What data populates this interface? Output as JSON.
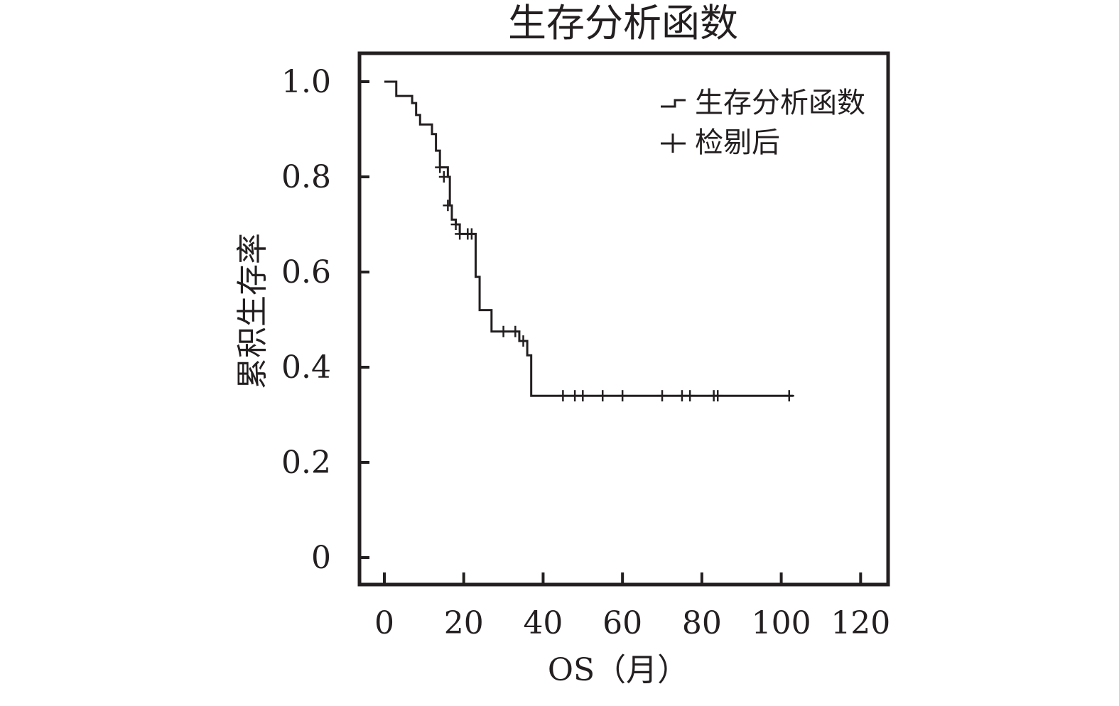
{
  "chart_data": {
    "type": "line",
    "title": "生存分析函数",
    "xlabel": "OS（月）",
    "ylabel": "累积生存率",
    "xlim": [
      -7,
      126
    ],
    "ylim": [
      -0.06,
      1.06
    ],
    "xticks": [
      0,
      20,
      40,
      60,
      80,
      100,
      120
    ],
    "yticks": [
      0,
      0.2,
      0.4,
      0.6,
      0.8,
      1.0
    ],
    "xtick_labels": [
      "0",
      "20",
      "40",
      "60",
      "80",
      "100",
      "120"
    ],
    "ytick_labels": [
      "0",
      "0.2",
      "0.4",
      "0.6",
      "0.8",
      "1.0"
    ],
    "grid": false,
    "legend_position": "top-right",
    "legend": [
      {
        "symbol": "step",
        "label": "生存分析函数"
      },
      {
        "symbol": "plus",
        "label": "检剔后"
      }
    ],
    "series": [
      {
        "kind": "survival-step",
        "steps": [
          {
            "x": 0,
            "y": 1.0
          },
          {
            "x": 3,
            "y": 0.97
          },
          {
            "x": 7,
            "y": 0.955
          },
          {
            "x": 8,
            "y": 0.93
          },
          {
            "x": 9,
            "y": 0.91
          },
          {
            "x": 12,
            "y": 0.89
          },
          {
            "x": 13,
            "y": 0.855
          },
          {
            "x": 14,
            "y": 0.82
          },
          {
            "x": 16,
            "y": 0.8
          },
          {
            "x": 16.5,
            "y": 0.74
          },
          {
            "x": 17,
            "y": 0.71
          },
          {
            "x": 18,
            "y": 0.7
          },
          {
            "x": 19,
            "y": 0.68
          },
          {
            "x": 23,
            "y": 0.59
          },
          {
            "x": 24,
            "y": 0.52
          },
          {
            "x": 27,
            "y": 0.475
          },
          {
            "x": 34,
            "y": 0.455
          },
          {
            "x": 36,
            "y": 0.425
          },
          {
            "x": 37,
            "y": 0.34
          },
          {
            "x": 103,
            "y": 0.34
          }
        ],
        "censored": [
          {
            "x": 14,
            "y": 0.82
          },
          {
            "x": 15,
            "y": 0.8
          },
          {
            "x": 16,
            "y": 0.74
          },
          {
            "x": 18,
            "y": 0.7
          },
          {
            "x": 19,
            "y": 0.68
          },
          {
            "x": 21,
            "y": 0.68
          },
          {
            "x": 22,
            "y": 0.68
          },
          {
            "x": 30,
            "y": 0.475
          },
          {
            "x": 33,
            "y": 0.475
          },
          {
            "x": 35,
            "y": 0.455
          },
          {
            "x": 45,
            "y": 0.34
          },
          {
            "x": 48,
            "y": 0.34
          },
          {
            "x": 50,
            "y": 0.34
          },
          {
            "x": 55,
            "y": 0.34
          },
          {
            "x": 60,
            "y": 0.34
          },
          {
            "x": 70,
            "y": 0.34
          },
          {
            "x": 75,
            "y": 0.34
          },
          {
            "x": 77,
            "y": 0.34
          },
          {
            "x": 83,
            "y": 0.34
          },
          {
            "x": 84,
            "y": 0.34
          },
          {
            "x": 102,
            "y": 0.34
          }
        ]
      }
    ]
  }
}
